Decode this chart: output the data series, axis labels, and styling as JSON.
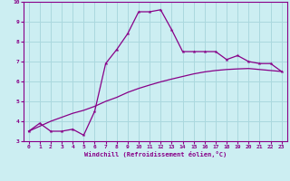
{
  "xlabel": "Windchill (Refroidissement éolien,°C)",
  "bg_color": "#cceef2",
  "grid_color": "#aad8de",
  "line_color": "#880088",
  "xlim": [
    -0.5,
    23.5
  ],
  "ylim": [
    3,
    10
  ],
  "xticks": [
    0,
    1,
    2,
    3,
    4,
    5,
    6,
    7,
    8,
    9,
    10,
    11,
    12,
    13,
    14,
    15,
    16,
    17,
    18,
    19,
    20,
    21,
    22,
    23
  ],
  "yticks": [
    3,
    4,
    5,
    6,
    7,
    8,
    9,
    10
  ],
  "series1_x": [
    0,
    1,
    2,
    3,
    4,
    5,
    6,
    7,
    8,
    9,
    10,
    11,
    12,
    13,
    14,
    15,
    16,
    17,
    18,
    19,
    20,
    21,
    22,
    23
  ],
  "series1_y": [
    3.5,
    3.9,
    3.5,
    3.5,
    3.6,
    3.3,
    4.5,
    6.9,
    7.6,
    8.4,
    9.5,
    9.5,
    9.6,
    8.6,
    7.5,
    7.5,
    7.5,
    7.5,
    7.1,
    7.3,
    7.0,
    6.9,
    6.9,
    6.5
  ],
  "series2_x": [
    0,
    1,
    2,
    3,
    4,
    5,
    6,
    7,
    8,
    9,
    10,
    11,
    12,
    13,
    14,
    15,
    16,
    17,
    18,
    19,
    20,
    21,
    22,
    23
  ],
  "series2_y": [
    3.5,
    3.75,
    4.0,
    4.2,
    4.4,
    4.55,
    4.75,
    5.0,
    5.2,
    5.45,
    5.65,
    5.82,
    5.98,
    6.12,
    6.25,
    6.38,
    6.48,
    6.55,
    6.6,
    6.63,
    6.65,
    6.6,
    6.55,
    6.5
  ]
}
